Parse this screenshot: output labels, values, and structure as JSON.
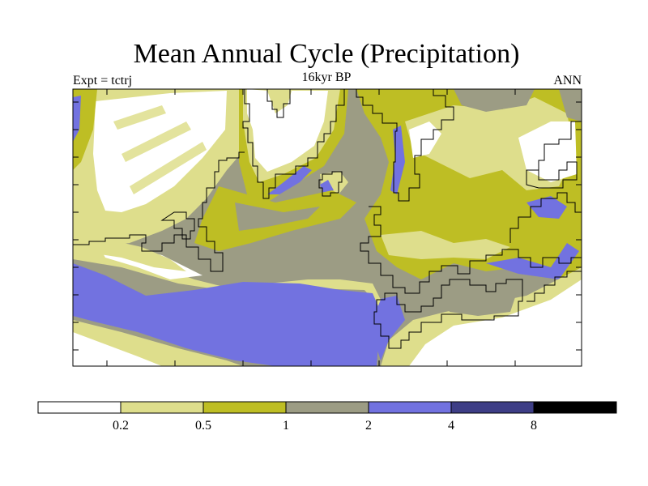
{
  "chart_data": {
    "type": "heatmap",
    "title": "Mean Annual Cycle (Precipitation)",
    "subtitle": "16kyr BP",
    "left_label": "Expt = tctrj",
    "right_label": "ANN",
    "colorbar": {
      "levels": [
        "0.2",
        "0.5",
        "1",
        "2",
        "4",
        "8"
      ],
      "colors": [
        "#ffffff",
        "#dede8c",
        "#bebe24",
        "#9c9c84",
        "#7272e0",
        "#3e3e86",
        "#000000"
      ]
    }
  }
}
